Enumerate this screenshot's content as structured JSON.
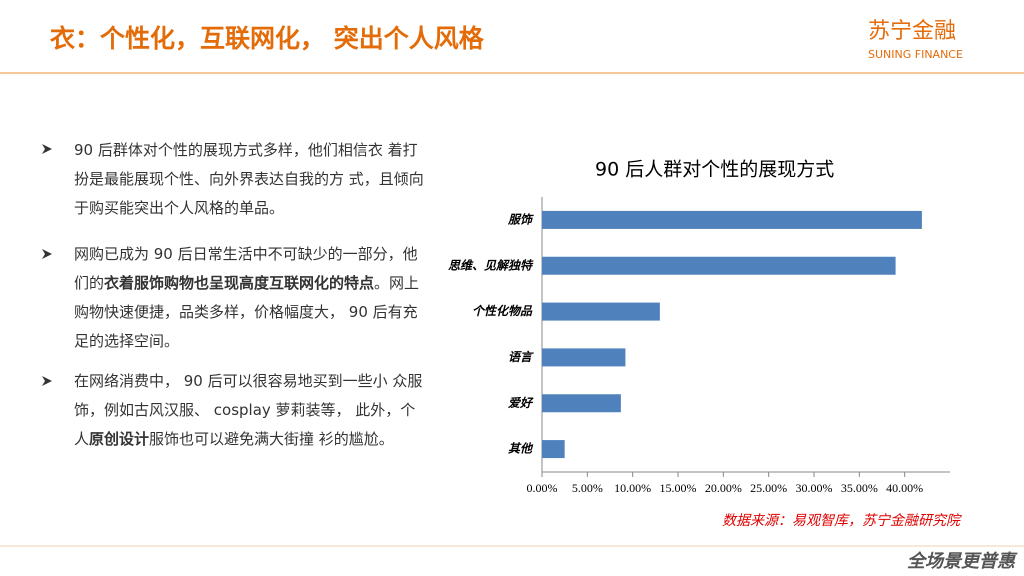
{
  "header": {
    "title": "衣：个性化，互联网化， 突出个人风格",
    "logo": "苏宁金融",
    "logo_sub": "SUNING FINANCE"
  },
  "bullets": [
    {
      "runs": [
        {
          "text": "90 后群体对个性的展现方式多样，他们相信衣 着打扮是最能展现个性、向外界表达自我的方 式，且倾向于购买能突出个人风格的单品。",
          "bold": false
        }
      ]
    },
    {
      "runs": [
        {
          "text": "网购已成为 90 后日常生活中不可缺少的一部分，他们的",
          "bold": false
        },
        {
          "text": "衣着服饰购物也呈现高度互联网化的特点",
          "bold": true
        },
        {
          "text": "。网上购物快速便捷，品类多样，价格幅度大， 90 后有充足的选择空间。",
          "bold": false
        }
      ]
    },
    {
      "runs": [
        {
          "text": "在网络消费中， 90 后可以很容易地买到一些小 众服饰，例如古风汉服、 cosplay 萝莉装等， 此外，个人",
          "bold": false
        },
        {
          "text": "原创设计",
          "bold": true
        },
        {
          "text": "服饰也可以避免满大街撞 衫的尴尬。",
          "bold": false
        }
      ]
    }
  ],
  "chart_data": {
    "type": "hbar",
    "title": "90 后人群对个性的展现方式",
    "categories": [
      "服饰",
      "思维、见解独特",
      "个性化物品",
      "语言",
      "爱好",
      "其他"
    ],
    "values": [
      41.9,
      39.0,
      13.0,
      9.2,
      8.7,
      2.5
    ],
    "color": "#4f81bd",
    "xlim": [
      0,
      45
    ],
    "xticks": [
      {
        "value": 0,
        "label": "0.00%"
      },
      {
        "value": 5,
        "label": "5.00%"
      },
      {
        "value": 10,
        "label": "10.00%"
      },
      {
        "value": 15,
        "label": "15.00%"
      },
      {
        "value": 20,
        "label": "20.00%"
      },
      {
        "value": 25,
        "label": "25.00%"
      },
      {
        "value": 30,
        "label": "30.00%"
      },
      {
        "value": 35,
        "label": "35.00%"
      },
      {
        "value": 40,
        "label": "40.00%"
      }
    ]
  },
  "source": "数据来源：易观智库，苏宁金融研究院",
  "footer_logo": "全场景更普惠"
}
